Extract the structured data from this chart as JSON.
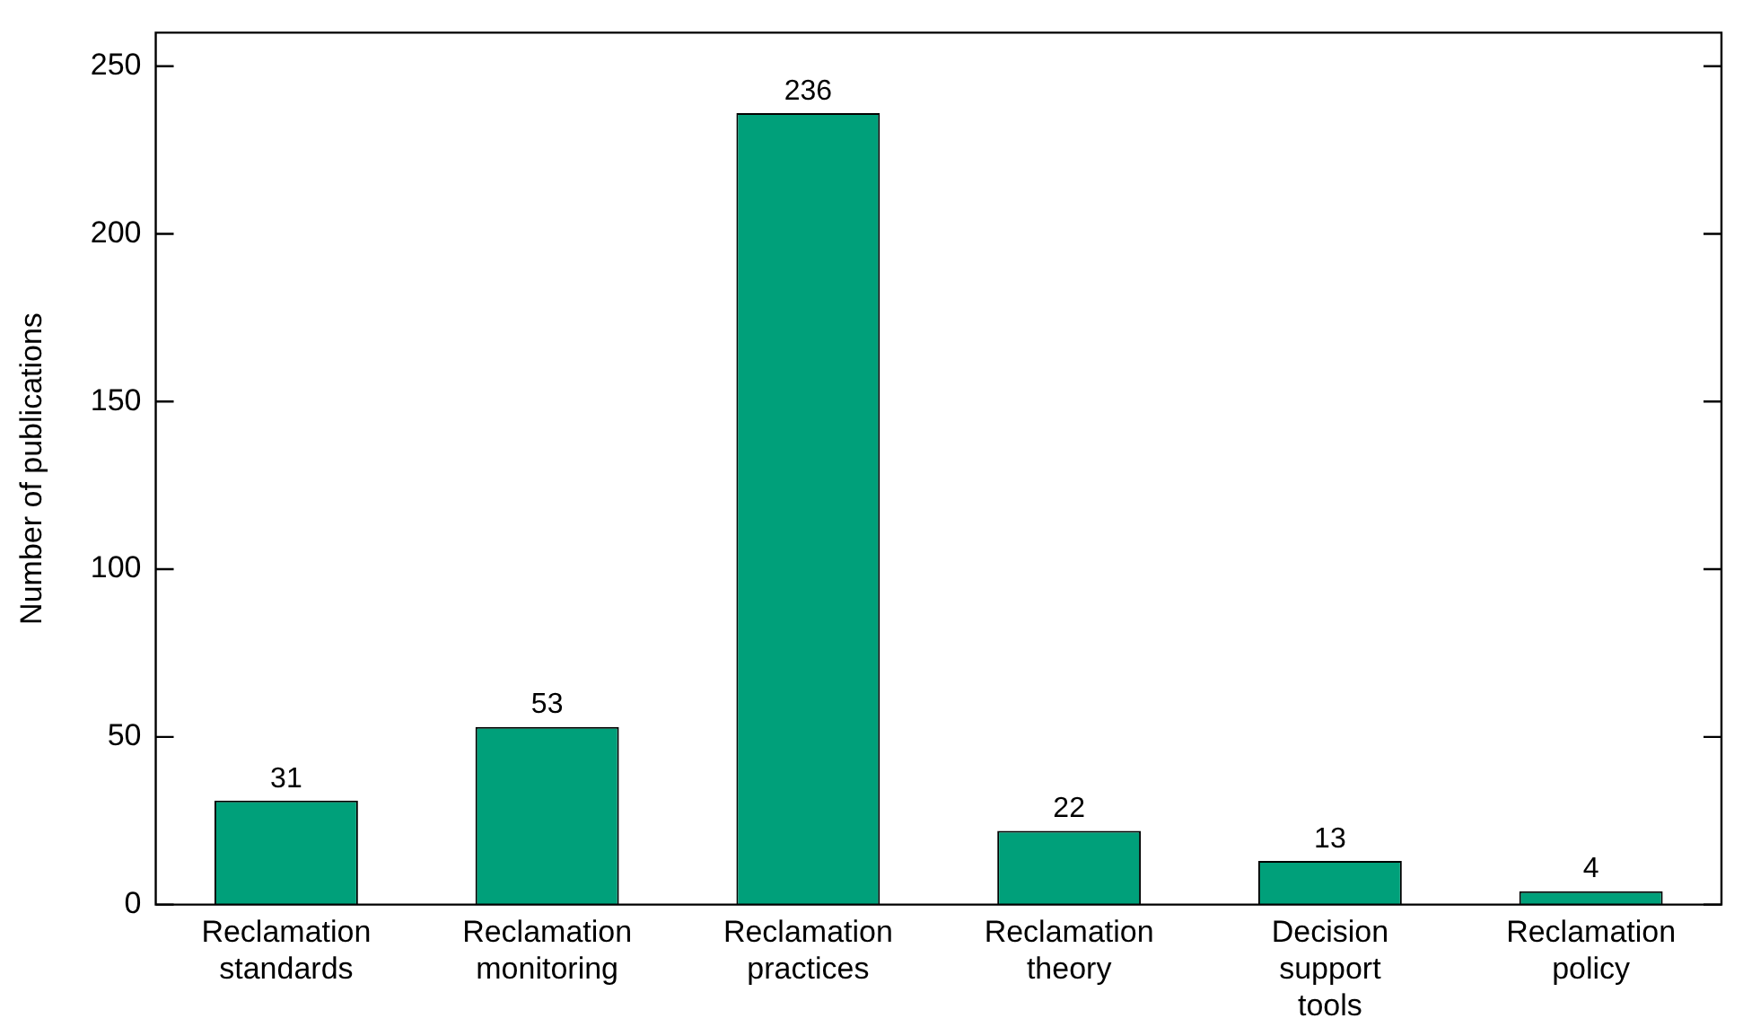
{
  "chart_data": {
    "type": "bar",
    "ylabel": "Number of publications",
    "categories": [
      "Reclamation standards",
      "Reclamation monitoring",
      "Reclamation practices",
      "Reclamation theory",
      "Decision support tools",
      "Reclamation policy"
    ],
    "values": [
      31,
      53,
      236,
      22,
      13,
      4
    ],
    "color": "#00a07a",
    "ylim": [
      0,
      260
    ],
    "yticks": [
      0,
      50,
      100,
      150,
      200,
      250
    ],
    "data_labels": true,
    "grid": false,
    "legend": false
  }
}
